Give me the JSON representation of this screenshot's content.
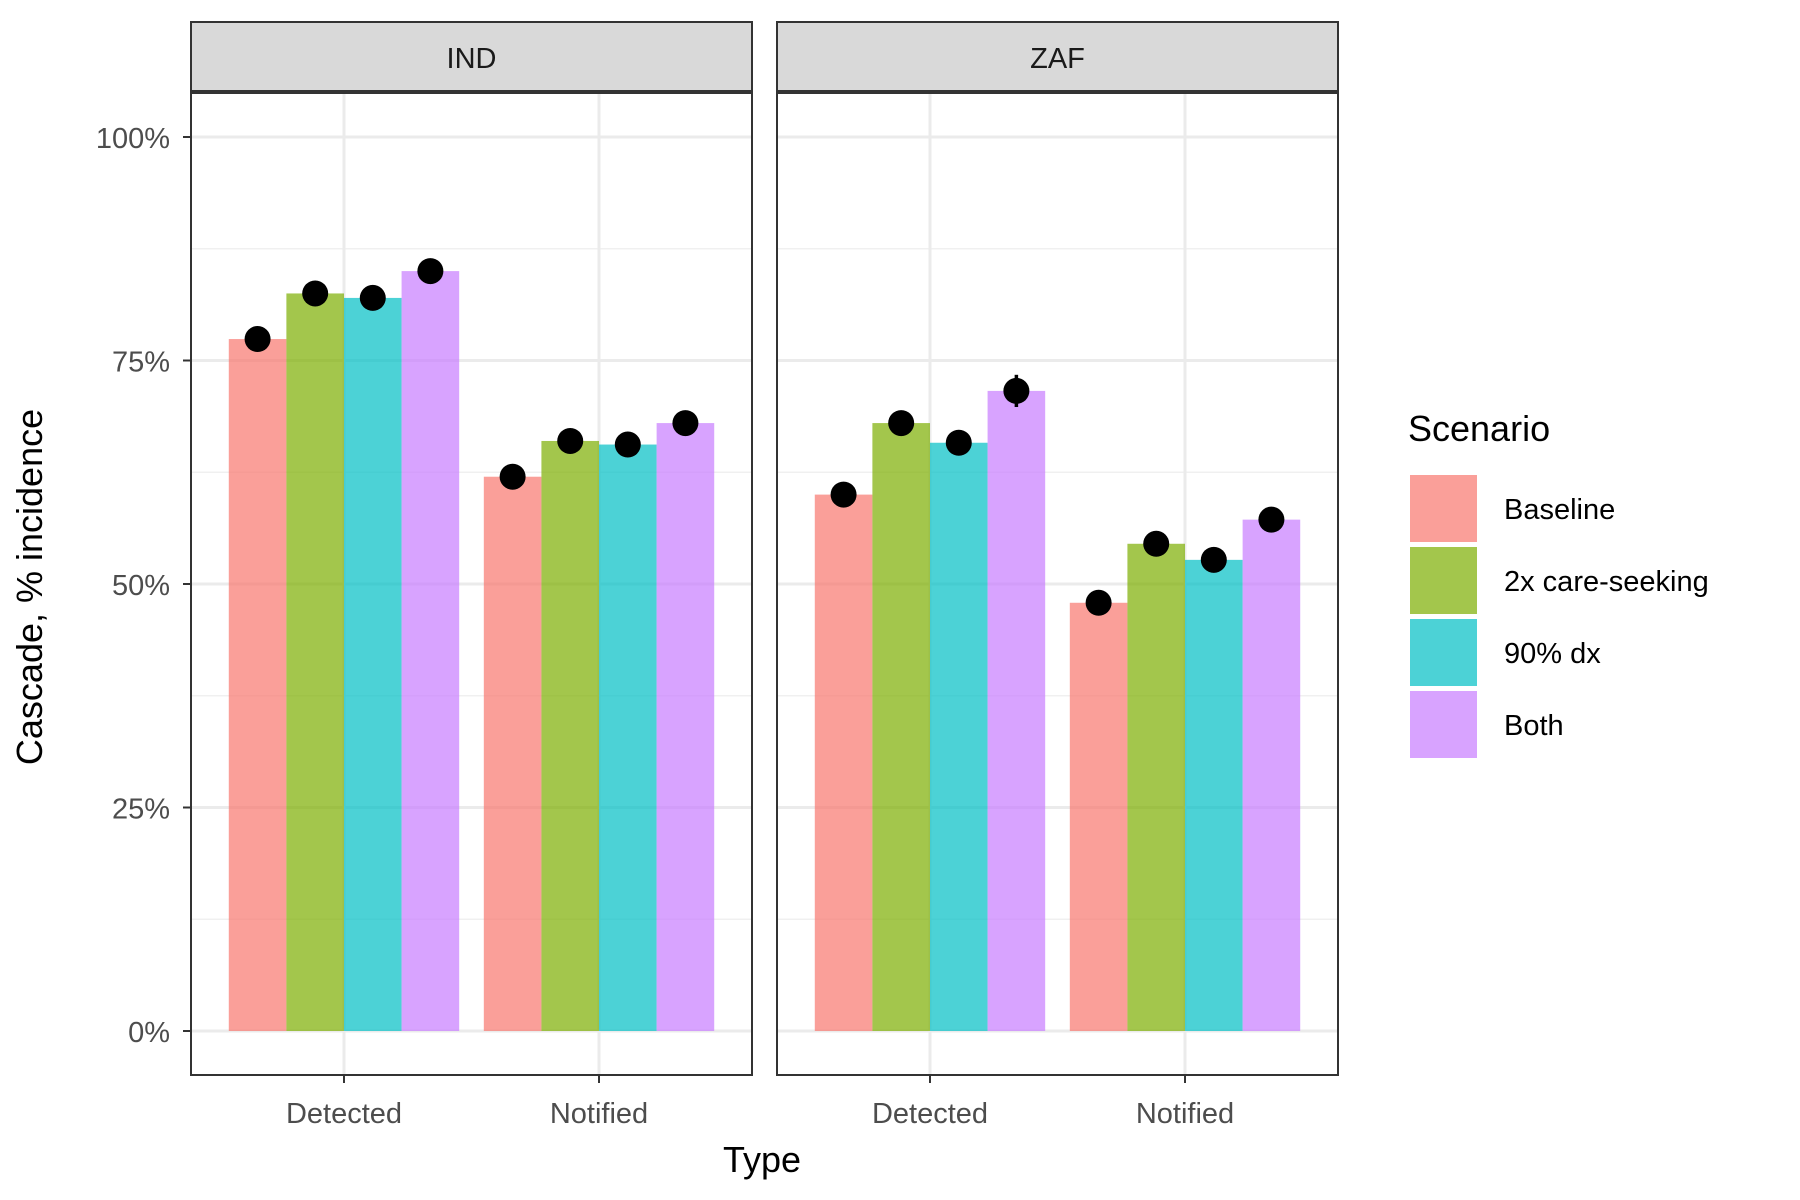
{
  "chart_data": {
    "type": "bar",
    "ylabel": "Cascade, % incidence",
    "xlabel": "Type",
    "ylim": [
      0,
      1
    ],
    "y_ticks": [
      0,
      0.25,
      0.5,
      0.75,
      1.0
    ],
    "y_tick_labels": [
      "0%",
      "25%",
      "50%",
      "75%",
      "100%"
    ],
    "grid": true,
    "legend": {
      "title": "Scenario",
      "position": "right",
      "entries": [
        "Baseline",
        "2x care-seeking",
        "90% dx",
        "Both"
      ]
    },
    "colors": {
      "Baseline": "#f8766d",
      "2x care-seeking": "#7cae00",
      "90% dx": "#00bfc4",
      "Both": "#c77cff"
    },
    "categories": [
      "Detected",
      "Notified"
    ],
    "panels": [
      {
        "label": "IND",
        "series": [
          {
            "name": "Baseline",
            "values": [
              0.774,
              0.62
            ],
            "points": [
              0.774,
              0.62
            ],
            "err": [
              0.004,
              0.004
            ]
          },
          {
            "name": "2x care-seeking",
            "values": [
              0.825,
              0.66
            ],
            "points": [
              0.825,
              0.66
            ],
            "err": [
              0.004,
              0.004
            ]
          },
          {
            "name": "90% dx",
            "values": [
              0.82,
              0.656
            ],
            "points": [
              0.82,
              0.656
            ],
            "err": [
              0.004,
              0.004
            ]
          },
          {
            "name": "Both",
            "values": [
              0.85,
              0.68
            ],
            "points": [
              0.85,
              0.68
            ],
            "err": [
              0.004,
              0.004
            ]
          }
        ]
      },
      {
        "label": "ZAF",
        "series": [
          {
            "name": "Baseline",
            "values": [
              0.6,
              0.479
            ],
            "points": [
              0.6,
              0.479
            ],
            "err": [
              0.005,
              0.005
            ]
          },
          {
            "name": "2x care-seeking",
            "values": [
              0.68,
              0.545
            ],
            "points": [
              0.68,
              0.545
            ],
            "err": [
              0.006,
              0.006
            ]
          },
          {
            "name": "90% dx",
            "values": [
              0.658,
              0.527
            ],
            "points": [
              0.658,
              0.527
            ],
            "err": [
              0.012,
              0.006
            ]
          },
          {
            "name": "Both",
            "values": [
              0.716,
              0.572
            ],
            "points": [
              0.716,
              0.572
            ],
            "err": [
              0.018,
              0.006
            ]
          }
        ]
      }
    ]
  }
}
